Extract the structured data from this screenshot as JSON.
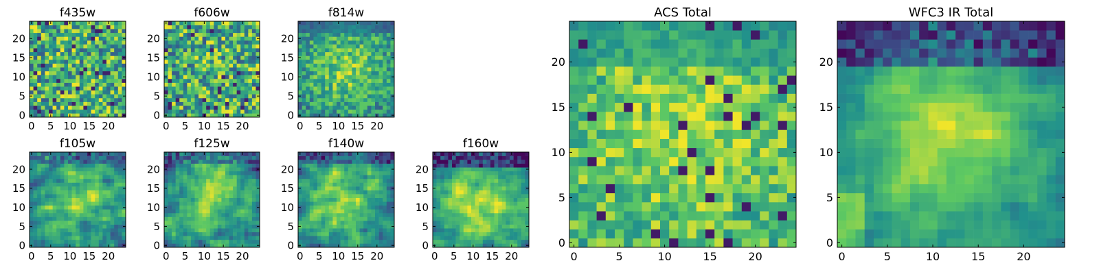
{
  "figure": {
    "colormap": "viridis",
    "colormap_stops": [
      "#440154",
      "#3b528b",
      "#21918c",
      "#5ec962",
      "#fde725"
    ],
    "frame_color": "#000000"
  },
  "chart_data": [
    {
      "type": "heatmap",
      "title": "f435w",
      "grid_size": 25,
      "xlim": [
        0,
        24
      ],
      "ylim": [
        0,
        24
      ],
      "xticks": [
        0,
        5,
        10,
        15,
        20
      ],
      "yticks": [
        0,
        5,
        10,
        15,
        20
      ],
      "texture": "noisy",
      "value_range": [
        0,
        1
      ]
    },
    {
      "type": "heatmap",
      "title": "f606w",
      "grid_size": 25,
      "xlim": [
        0,
        24
      ],
      "ylim": [
        0,
        24
      ],
      "xticks": [
        0,
        5,
        10,
        15,
        20
      ],
      "yticks": [
        0,
        5,
        10,
        15,
        20
      ],
      "texture": "noisy",
      "value_range": [
        0,
        1
      ]
    },
    {
      "type": "heatmap",
      "title": "f814w",
      "grid_size": 25,
      "xlim": [
        0,
        24
      ],
      "ylim": [
        0,
        24
      ],
      "xticks": [
        0,
        5,
        10,
        15,
        20
      ],
      "yticks": [
        0,
        5,
        10,
        15,
        20
      ],
      "texture": "central-bright",
      "value_range": [
        0,
        1
      ]
    },
    {
      "type": "heatmap",
      "title": "f105w",
      "grid_size": 25,
      "xlim": [
        0,
        24
      ],
      "ylim": [
        0,
        24
      ],
      "xticks": [
        0,
        5,
        10,
        15,
        20
      ],
      "yticks": [
        0,
        5,
        10,
        15,
        20
      ],
      "texture": "smooth",
      "value_range": [
        0,
        1
      ]
    },
    {
      "type": "heatmap",
      "title": "f125w",
      "grid_size": 25,
      "xlim": [
        0,
        24
      ],
      "ylim": [
        0,
        24
      ],
      "xticks": [
        0,
        5,
        10,
        15,
        20
      ],
      "yticks": [
        0,
        5,
        10,
        15,
        20
      ],
      "texture": "smooth",
      "value_range": [
        0,
        1
      ]
    },
    {
      "type": "heatmap",
      "title": "f140w",
      "grid_size": 25,
      "xlim": [
        0,
        24
      ],
      "ylim": [
        0,
        24
      ],
      "xticks": [
        0,
        5,
        10,
        15,
        20
      ],
      "yticks": [
        0,
        5,
        10,
        15,
        20
      ],
      "texture": "smooth",
      "value_range": [
        0,
        1
      ]
    },
    {
      "type": "heatmap",
      "title": "f160w",
      "grid_size": 25,
      "xlim": [
        0,
        24
      ],
      "ylim": [
        0,
        24
      ],
      "xticks": [
        0,
        5,
        10,
        15,
        20
      ],
      "yticks": [
        0,
        5,
        10,
        15,
        20
      ],
      "texture": "smooth-top-dark",
      "value_range": [
        0,
        1
      ]
    },
    {
      "type": "heatmap",
      "title": "ACS Total",
      "grid_size": 25,
      "xlim": [
        0,
        24
      ],
      "ylim": [
        0,
        24
      ],
      "xticks": [
        0,
        5,
        10,
        15,
        20
      ],
      "yticks": [
        0,
        5,
        10,
        15,
        20
      ],
      "texture": "total-acs",
      "value_range": [
        0,
        1
      ]
    },
    {
      "type": "heatmap",
      "title": "WFC3 IR Total",
      "grid_size": 25,
      "xlim": [
        0,
        24
      ],
      "ylim": [
        0,
        24
      ],
      "xticks": [
        0,
        5,
        10,
        15,
        20
      ],
      "yticks": [
        0,
        5,
        10,
        15,
        20
      ],
      "texture": "total-ir",
      "value_range": [
        0,
        1
      ]
    }
  ]
}
